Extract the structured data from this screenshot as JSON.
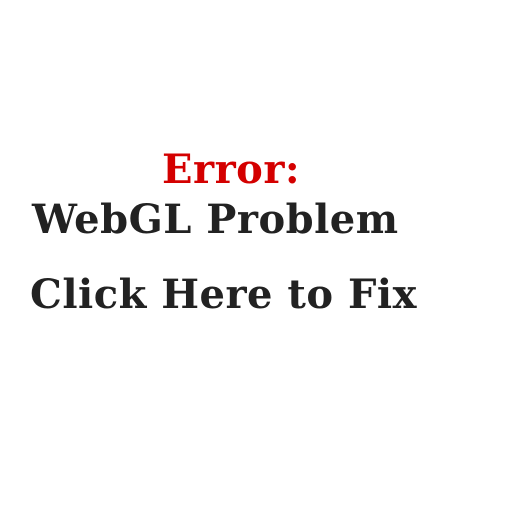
{
  "message": {
    "error_label": "Error:",
    "headline": "WebGL Problem",
    "action_link": "Click Here to Fix"
  },
  "colors": {
    "error": "#d40000",
    "text": "#222222",
    "background": "#ffffff"
  }
}
